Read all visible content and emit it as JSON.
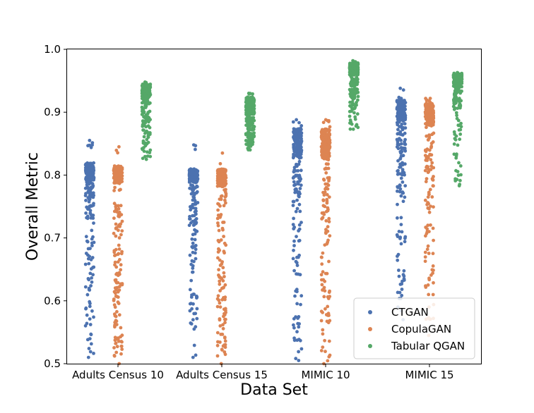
{
  "chart_data": {
    "type": "scatter",
    "subtype": "strip",
    "title": "",
    "xlabel": "Data Set",
    "ylabel": "Overall Metric",
    "ylim": [
      0.5,
      1.0
    ],
    "yticks": [
      "0.5",
      "0.6",
      "0.7",
      "0.8",
      "0.9",
      "1.0"
    ],
    "categories": [
      "Adults Census 10",
      "Adults Census 15",
      "MIMIC 10",
      "MIMIC 15"
    ],
    "legend_position": "bottom-right",
    "series": [
      {
        "name": "CTGAN",
        "color": "#4c72b0",
        "stats": [
          {
            "min": 0.51,
            "q1": 0.73,
            "median": 0.775,
            "q3": 0.8,
            "max": 0.855,
            "dense_upper": 0.82
          },
          {
            "min": 0.51,
            "q1": 0.72,
            "median": 0.765,
            "q3": 0.795,
            "max": 0.848,
            "dense_upper": 0.81
          },
          {
            "min": 0.505,
            "q1": 0.76,
            "median": 0.81,
            "q3": 0.845,
            "max": 0.888,
            "dense_upper": 0.875
          },
          {
            "min": 0.57,
            "q1": 0.8,
            "median": 0.86,
            "q3": 0.895,
            "max": 0.938,
            "dense_upper": 0.92
          }
        ]
      },
      {
        "name": "CopulaGAN",
        "color": "#dd8452",
        "stats": [
          {
            "min": 0.5,
            "q1": 0.65,
            "median": 0.76,
            "q3": 0.795,
            "max": 0.845,
            "dense_upper": 0.815
          },
          {
            "min": 0.5,
            "q1": 0.62,
            "median": 0.74,
            "q3": 0.79,
            "max": 0.835,
            "dense_upper": 0.81
          },
          {
            "min": 0.5,
            "q1": 0.7,
            "median": 0.8,
            "q3": 0.84,
            "max": 0.888,
            "dense_upper": 0.875
          },
          {
            "min": 0.545,
            "q1": 0.78,
            "median": 0.855,
            "q3": 0.89,
            "max": 0.922,
            "dense_upper": 0.915
          }
        ]
      },
      {
        "name": "Tabular QGAN",
        "color": "#55a868",
        "stats": [
          {
            "min": 0.825,
            "q1": 0.885,
            "median": 0.915,
            "q3": 0.93,
            "max": 0.948,
            "dense_upper": 0.945
          },
          {
            "min": 0.84,
            "q1": 0.865,
            "median": 0.885,
            "q3": 0.905,
            "max": 0.93,
            "dense_upper": 0.925
          },
          {
            "min": 0.873,
            "q1": 0.93,
            "median": 0.95,
            "q3": 0.965,
            "max": 0.982,
            "dense_upper": 0.978
          },
          {
            "min": 0.783,
            "q1": 0.91,
            "median": 0.935,
            "q3": 0.95,
            "max": 0.963,
            "dense_upper": 0.96
          }
        ]
      }
    ]
  }
}
